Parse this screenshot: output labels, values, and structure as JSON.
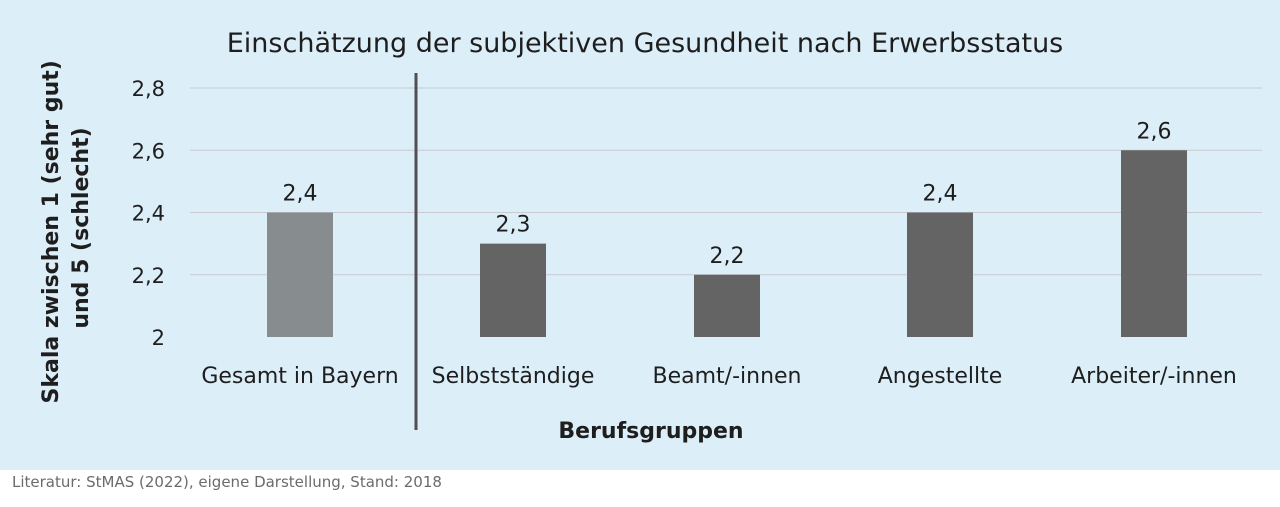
{
  "chart_data": {
    "type": "bar",
    "title": "Einschätzung der subjektiven Gesundheit nach Erwerbsstatus",
    "xlabel": "Berufsgruppen",
    "ylabel_lines": [
      "Skala zwischen 1 (sehr gut)",
      "und 5 (schlecht)"
    ],
    "categories": [
      "Gesamt in Bayern",
      "Selbstständige",
      "Beamt/-innen",
      "Angestellte",
      "Arbeiter/-innen"
    ],
    "values": [
      2.4,
      2.3,
      2.2,
      2.4,
      2.6
    ],
    "data_labels": [
      "2,4",
      "2,3",
      "2,2",
      "2,4",
      "2,6"
    ],
    "ylim": [
      2,
      2.8
    ],
    "yticks": [
      2,
      2.2,
      2.4,
      2.6,
      2.8
    ],
    "ytick_labels": [
      "2",
      "2,2",
      "2,4",
      "2,6",
      "2,8"
    ],
    "grid": true,
    "bar_colors": [
      "#878c8f",
      "#646464",
      "#646464",
      "#646464",
      "#646464"
    ],
    "separator_after_category": 0
  },
  "source_note": "Literatur: StMAS (2022), eigene Darstellung, Stand: 2018",
  "colors": {
    "panel_background": "#dceef8",
    "grid": "#c9c9cf",
    "separator": "#505050"
  }
}
